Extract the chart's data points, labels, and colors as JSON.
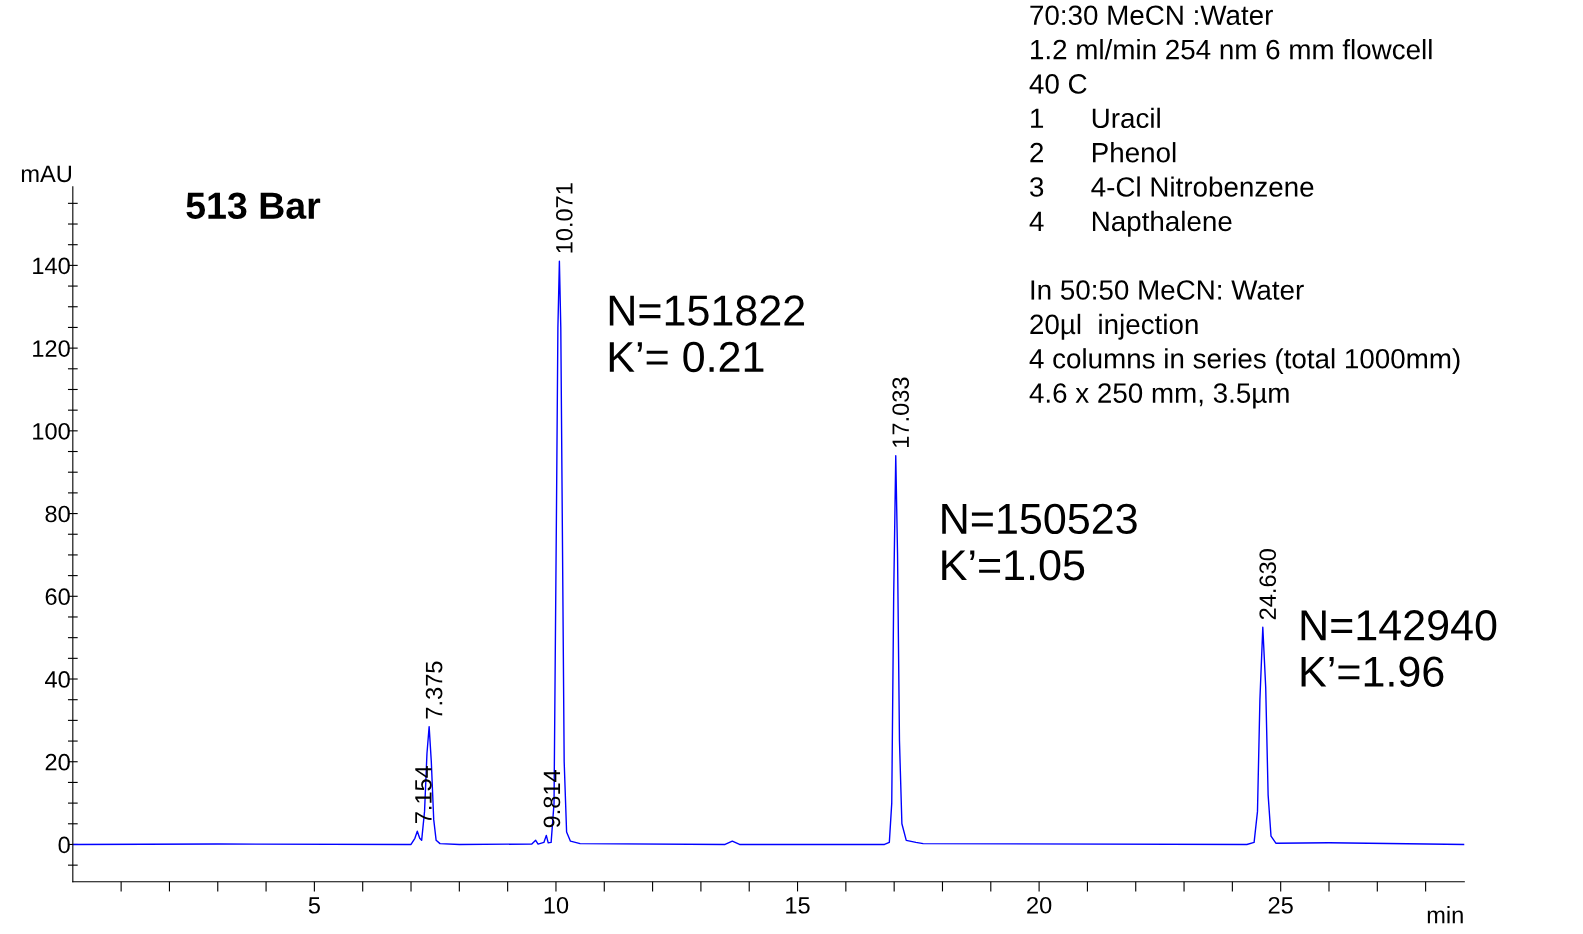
{
  "chart_data": {
    "type": "line",
    "xlabel": "min",
    "ylabel": "mAU",
    "xlim": [
      0,
      28.8
    ],
    "ylim": [
      -9,
      159
    ],
    "xticks": [
      {
        "value": 1,
        "label": null
      },
      {
        "value": 2,
        "label": null
      },
      {
        "value": 3,
        "label": null
      },
      {
        "value": 4,
        "label": null
      },
      5,
      {
        "value": 6,
        "label": null
      },
      {
        "value": 7,
        "label": null
      },
      {
        "value": 8,
        "label": null
      },
      {
        "value": 9,
        "label": null
      },
      10,
      {
        "value": 11,
        "label": null
      },
      {
        "value": 12,
        "label": null
      },
      {
        "value": 13,
        "label": null
      },
      {
        "value": 14,
        "label": null
      },
      15,
      {
        "value": 16,
        "label": null
      },
      {
        "value": 17,
        "label": null
      },
      {
        "value": 18,
        "label": null
      },
      {
        "value": 19,
        "label": null
      },
      20,
      {
        "value": 21,
        "label": null
      },
      {
        "value": 22,
        "label": null
      },
      {
        "value": 23,
        "label": null
      },
      {
        "value": 24,
        "label": null
      },
      25,
      {
        "value": 26,
        "label": null
      },
      {
        "value": 27,
        "label": null
      },
      {
        "value": 28,
        "label": null
      }
    ],
    "yticks": [
      {
        "value": -5,
        "label": null
      },
      0,
      {
        "value": 5,
        "label": null
      },
      {
        "value": 10,
        "label": null
      },
      {
        "value": 15,
        "label": null
      },
      20,
      {
        "value": 25,
        "label": null
      },
      {
        "value": 30,
        "label": null
      },
      {
        "value": 35,
        "label": null
      },
      40,
      {
        "value": 45,
        "label": null
      },
      {
        "value": 50,
        "label": null
      },
      {
        "value": 55,
        "label": null
      },
      60,
      {
        "value": 65,
        "label": null
      },
      {
        "value": 70,
        "label": null
      },
      {
        "value": 75,
        "label": null
      },
      80,
      {
        "value": 85,
        "label": null
      },
      {
        "value": 90,
        "label": null
      },
      {
        "value": 95,
        "label": null
      },
      100,
      {
        "value": 105,
        "label": null
      },
      {
        "value": 110,
        "label": null
      },
      {
        "value": 115,
        "label": null
      },
      120,
      {
        "value": 125,
        "label": null
      },
      {
        "value": 130,
        "label": null
      },
      {
        "value": 135,
        "label": null
      },
      140,
      {
        "value": 145,
        "label": null
      },
      {
        "value": 150,
        "label": null
      },
      {
        "value": 155,
        "label": null
      }
    ],
    "grid": false,
    "marker": "none",
    "line_style": "solid",
    "series": [
      {
        "color": "#0000ff",
        "x": [
          0,
          3,
          6.9,
          7.0,
          7.08,
          7.13,
          7.18,
          7.22,
          7.28,
          7.33,
          7.375,
          7.42,
          7.47,
          7.52,
          7.6,
          8,
          9.5,
          9.58,
          9.63,
          9.75,
          9.8,
          9.84,
          9.9,
          9.96,
          10.01,
          10.04,
          10.071,
          10.1,
          10.13,
          10.17,
          10.22,
          10.3,
          10.5,
          13.5,
          13.65,
          13.8,
          16.8,
          16.9,
          16.95,
          16.99,
          17.033,
          17.07,
          17.11,
          17.16,
          17.25,
          17.45,
          17.6,
          24.3,
          24.45,
          24.52,
          24.57,
          24.63,
          24.69,
          24.74,
          24.8,
          24.9,
          26,
          28.8
        ],
        "values": [
          0,
          0.1,
          0,
          0,
          1.5,
          3.2,
          1.5,
          1,
          8,
          22,
          28.5,
          20,
          6,
          1,
          0.2,
          0,
          0.1,
          1,
          0.1,
          0.5,
          2.2,
          0.4,
          0.5,
          10,
          80,
          125,
          141,
          125,
          80,
          20,
          3,
          0.8,
          0.2,
          0,
          0.8,
          0,
          0,
          0.5,
          10,
          60,
          94,
          70,
          25,
          5,
          1,
          0.5,
          0.2,
          0,
          0.5,
          8,
          35,
          52.5,
          38,
          12,
          2,
          0.3,
          0.4,
          0
        ]
      }
    ],
    "annotations": [
      {
        "text": "7.154",
        "x": 7.154,
        "y": 3.2
      },
      {
        "text": "7.375",
        "x": 7.375,
        "y": 28.5
      },
      {
        "text": "9.814",
        "x": 9.814,
        "y": 2.2
      },
      {
        "text": "10.071",
        "x": 10.071,
        "y": 141
      },
      {
        "text": "17.033",
        "x": 17.033,
        "y": 94
      },
      {
        "text": "24.630",
        "x": 24.63,
        "y": 52.5
      },
      "513 Bar",
      "N=151822\nK’= 0.21",
      "N=150523\nK’=1.05",
      "N=142940\nK’=1.96",
      "70:30 MeCN :Water\n1.2 ml/min 254 nm 6 mm flowcell\n40 C\n1      Uracil\n2      Phenol\n3      4-Cl Nitrobenzene\n4      Napthalene\n\nIn 50:50 MeCN: Water\n20µl  injection\n4 columns in series (total 1000mm)\n4.6 x 250 mm, 3.5µm"
    ]
  }
}
